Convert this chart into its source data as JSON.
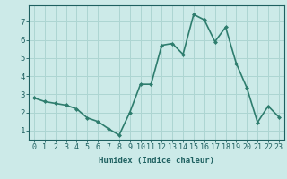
{
  "x": [
    0,
    1,
    2,
    3,
    4,
    5,
    6,
    7,
    8,
    9,
    10,
    11,
    12,
    13,
    14,
    15,
    16,
    17,
    18,
    19,
    20,
    21,
    22,
    23
  ],
  "y": [
    2.8,
    2.6,
    2.5,
    2.4,
    2.2,
    1.7,
    1.5,
    1.1,
    0.75,
    2.0,
    3.55,
    3.55,
    5.7,
    5.8,
    5.2,
    7.4,
    7.1,
    5.9,
    6.7,
    4.7,
    3.35,
    1.45,
    2.35,
    1.75
  ],
  "line_color": "#2e7d6e",
  "marker": "D",
  "marker_size": 2.0,
  "bg_color": "#cceae8",
  "grid_color": "#add5d2",
  "xlabel": "Humidex (Indice chaleur)",
  "ylim": [
    0.5,
    7.9
  ],
  "xlim": [
    -0.5,
    23.5
  ],
  "yticks": [
    1,
    2,
    3,
    4,
    5,
    6,
    7
  ],
  "xticks": [
    0,
    1,
    2,
    3,
    4,
    5,
    6,
    7,
    8,
    9,
    10,
    11,
    12,
    13,
    14,
    15,
    16,
    17,
    18,
    19,
    20,
    21,
    22,
    23
  ],
  "font_color": "#1e6060",
  "line_width": 1.2,
  "tick_fontsize": 6.0,
  "xlabel_fontsize": 6.5
}
